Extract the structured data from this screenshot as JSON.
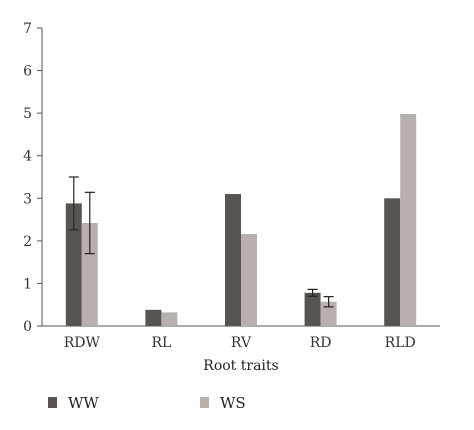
{
  "chart_data": {
    "type": "bar",
    "title": "",
    "xlabel": "Root traits",
    "ylabel": "",
    "ylim": [
      0,
      7
    ],
    "yticks": [
      0,
      1,
      2,
      3,
      4,
      5,
      6,
      7
    ],
    "grid": false,
    "legend_position": "bottom",
    "categories": [
      "RDW",
      "RL",
      "RV",
      "RD",
      "RLD"
    ],
    "series": [
      {
        "name": "WW",
        "color": "#5a5450",
        "values": [
          2.88,
          0.38,
          3.1,
          0.78,
          3.0
        ],
        "errors": [
          0.62,
          0.02,
          0.01,
          0.08,
          0.01
        ]
      },
      {
        "name": "WS",
        "color": "#b8b0ac",
        "values": [
          2.42,
          0.32,
          2.16,
          0.57,
          4.98
        ],
        "errors": [
          0.72,
          0.01,
          0.01,
          0.12,
          0.01
        ]
      }
    ]
  }
}
